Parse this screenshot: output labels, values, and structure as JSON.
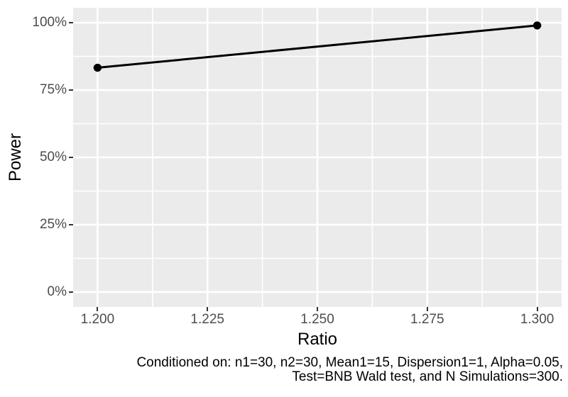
{
  "chart_data": {
    "type": "line",
    "title": "",
    "xlabel": "Ratio",
    "ylabel": "Power",
    "x": [
      1.2,
      1.3
    ],
    "series": [
      {
        "name": "Power",
        "values": [
          83.3,
          99.0
        ]
      }
    ],
    "x_ticks": {
      "values": [
        1.2,
        1.225,
        1.25,
        1.275,
        1.3
      ],
      "labels": [
        "1.200",
        "1.225",
        "1.250",
        "1.275",
        "1.300"
      ]
    },
    "y_ticks": {
      "values": [
        0,
        25,
        50,
        75,
        100
      ],
      "labels": [
        "0%",
        "25%",
        "50%",
        "75%",
        "100%"
      ]
    },
    "xlim": [
      1.2,
      1.3
    ],
    "ylim": [
      0,
      100
    ],
    "expansion": 0.05,
    "grid": "major-and-minor",
    "legend": "none",
    "caption_lines": [
      "Conditioned on: n1=30, n2=30, Mean1=15, Dispersion1=1, Alpha=0.05,",
      "Test=BNB Wald test, and N Simulations=300."
    ],
    "theme": {
      "background": "#FFFFFF",
      "panel_bg": "#EBEBEB",
      "grid_color": "#FFFFFF",
      "tick_color": "#333333",
      "tick_label_color": "#4D4D4D",
      "axis_title_color": "#000000",
      "line_color": "#000000",
      "point_color": "#000000"
    }
  }
}
